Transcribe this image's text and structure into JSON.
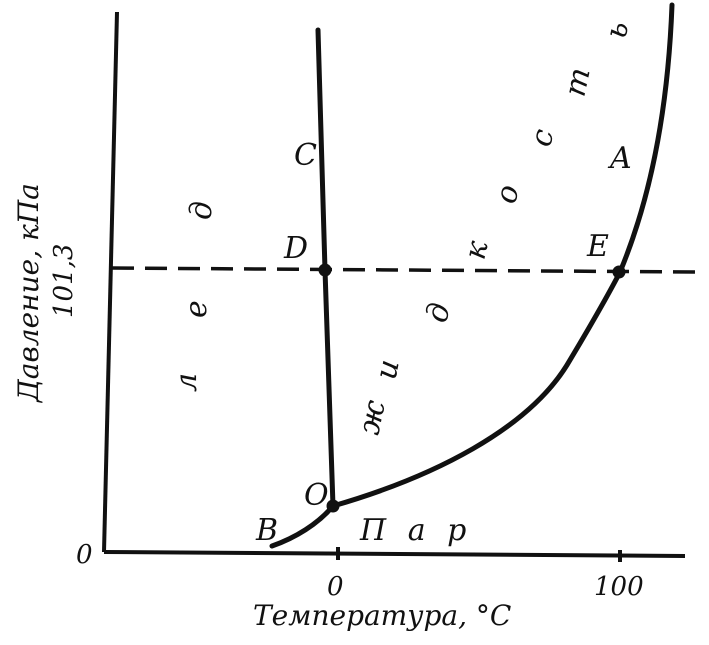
{
  "axes": {
    "ylabel": "Давление, кПа",
    "xlabel": "Температура, °C",
    "x_ticks": [
      "0",
      "100"
    ],
    "y_ticks": [
      "0",
      "101,3"
    ]
  },
  "regions": {
    "ice": [
      "л",
      "е",
      "д"
    ],
    "liquid": [
      "ж",
      "и",
      "д",
      "к",
      "о",
      "с",
      "т",
      "ь"
    ],
    "vapor": "П а р"
  },
  "points": {
    "O": "O",
    "A": "A",
    "B": "B",
    "C": "C",
    "D": "D",
    "E": "E"
  }
}
